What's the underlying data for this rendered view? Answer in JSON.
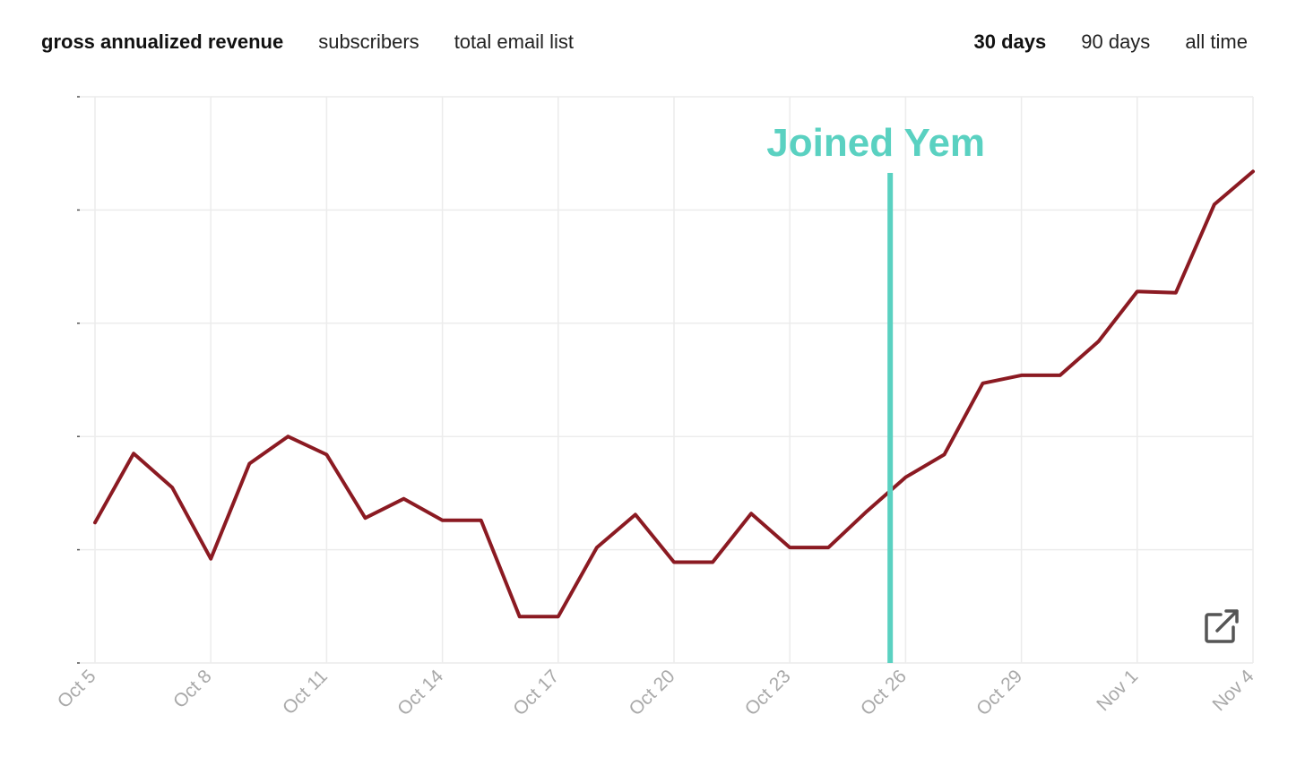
{
  "metric_tabs": [
    {
      "label": "gross annualized revenue",
      "active": true
    },
    {
      "label": "subscribers",
      "active": false
    },
    {
      "label": "total email list",
      "active": false
    }
  ],
  "range_tabs": [
    {
      "label": "30 days",
      "active": true
    },
    {
      "label": "90 days",
      "active": false
    },
    {
      "label": "all time",
      "active": false
    }
  ],
  "export_icon": "external-link-icon",
  "colors": {
    "line": "#8b1a22",
    "annotation": "#5ad1c1",
    "grid": "#ececec",
    "tick_label": "#a9a9a9"
  },
  "chart_data": {
    "type": "line",
    "title": "",
    "xlabel": "",
    "ylabel": "",
    "grid": true,
    "y_tick_labels_visible": false,
    "x_tick_labels": [
      "Oct 5",
      "Oct 8",
      "Oct 11",
      "Oct 14",
      "Oct 17",
      "Oct 20",
      "Oct 23",
      "Oct 26",
      "Oct 29",
      "Nov 1",
      "Nov 4"
    ],
    "x": [
      "Oct 5",
      "Oct 6",
      "Oct 7",
      "Oct 8",
      "Oct 9",
      "Oct 10",
      "Oct 11",
      "Oct 12",
      "Oct 13",
      "Oct 14",
      "Oct 15",
      "Oct 16",
      "Oct 17",
      "Oct 18",
      "Oct 19",
      "Oct 20",
      "Oct 21",
      "Oct 22",
      "Oct 23",
      "Oct 24",
      "Oct 25",
      "Oct 26",
      "Oct 27",
      "Oct 28",
      "Oct 29",
      "Oct 30",
      "Oct 31",
      "Nov 1",
      "Nov 2",
      "Nov 3",
      "Nov 4"
    ],
    "series": [
      {
        "values": [
          1.24,
          1.85,
          1.55,
          0.92,
          1.76,
          2.0,
          1.84,
          1.28,
          1.45,
          1.26,
          1.26,
          0.41,
          0.41,
          1.02,
          1.31,
          0.89,
          0.89,
          1.32,
          1.02,
          1.02,
          1.34,
          1.64,
          1.84,
          2.47,
          2.54,
          2.54,
          2.84,
          3.28,
          3.27,
          4.05,
          4.34
        ]
      }
    ],
    "ylim": [
      0,
      5
    ],
    "annotations": [
      {
        "type": "vline",
        "x": "Oct 25",
        "x_offset_days": 0.6,
        "label": "Joined Yem"
      }
    ]
  }
}
